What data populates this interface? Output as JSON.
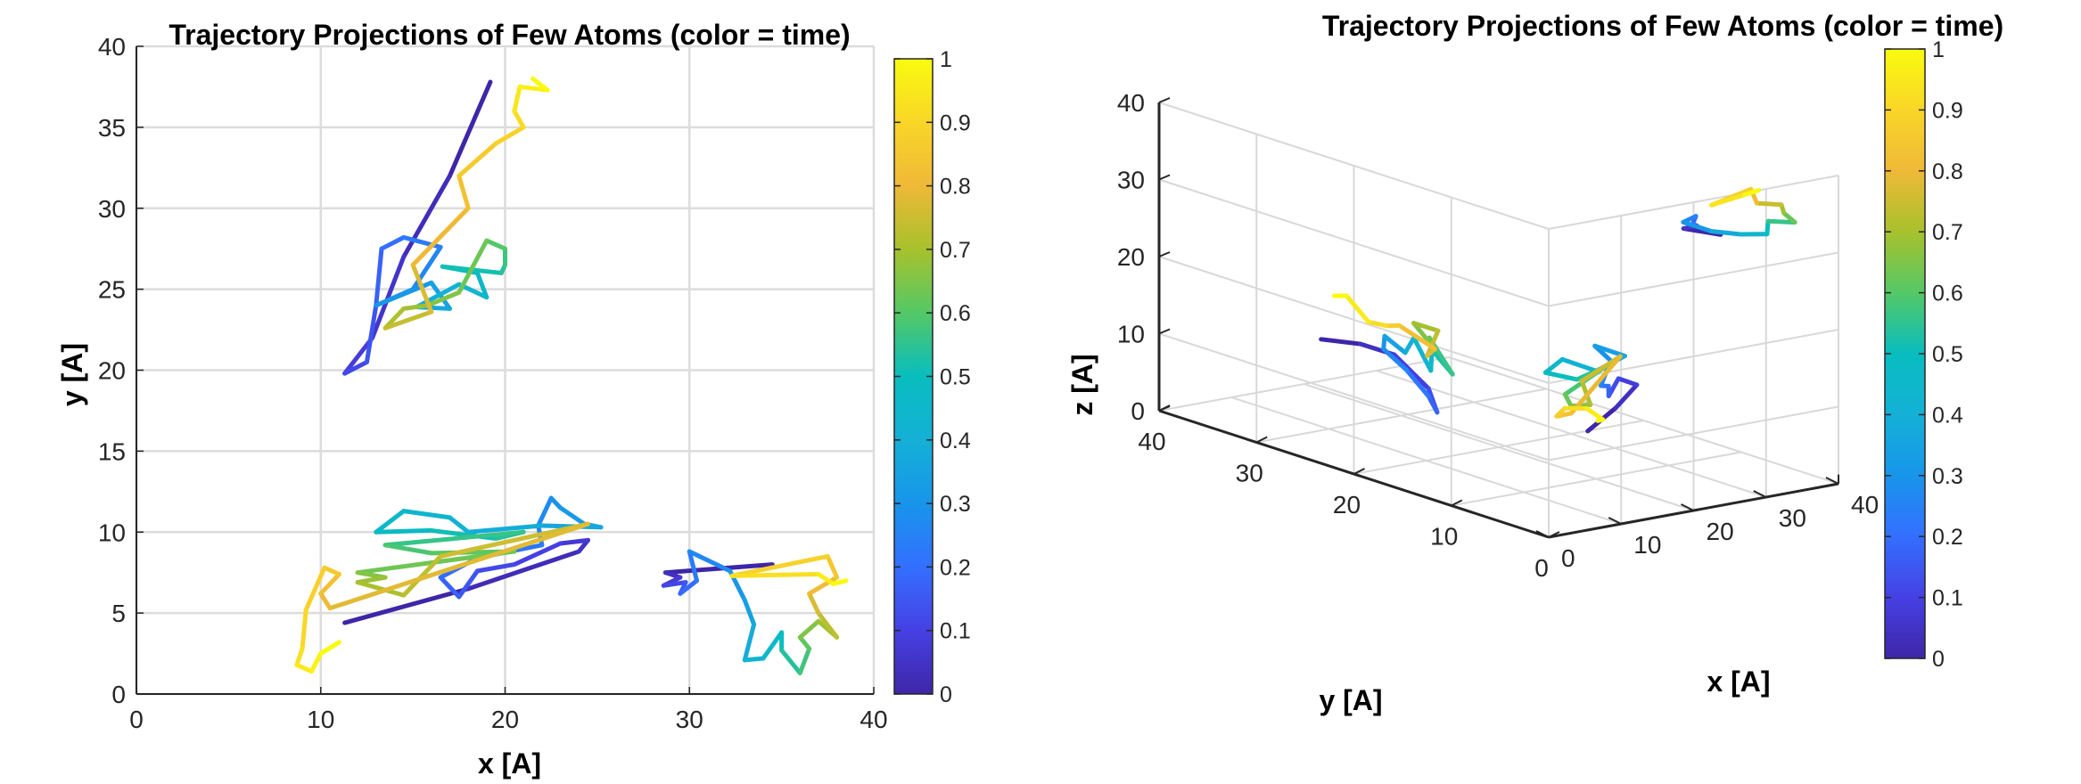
{
  "chart_data": [
    {
      "type": "line",
      "title": "Trajectory Projections of Few Atoms (color = time)",
      "xlabel": "x [A]",
      "ylabel": "y [A]",
      "xlim": [
        0,
        40
      ],
      "ylim": [
        0,
        40
      ],
      "xticks": [
        0,
        10,
        20,
        30,
        40
      ],
      "yticks": [
        0,
        5,
        10,
        15,
        20,
        25,
        30,
        35,
        40
      ],
      "grid": true,
      "colormap": "parula",
      "colorbar": {
        "ticks": [
          0,
          0.1,
          0.2,
          0.3,
          0.4,
          0.5,
          0.6,
          0.7,
          0.8,
          0.9,
          1
        ],
        "limits": [
          0,
          1
        ]
      },
      "series": [
        {
          "points": [
            [
              19.2,
              37.8
            ],
            [
              17,
              32
            ],
            [
              14.5,
              27
            ],
            [
              12.8,
              22
            ],
            [
              11.3,
              19.8
            ],
            [
              12.5,
              20.5
            ],
            [
              13,
              24
            ],
            [
              13.3,
              27.5
            ],
            [
              14.5,
              28.2
            ],
            [
              16.5,
              27.6
            ],
            [
              15,
              25
            ],
            [
              13,
              24
            ],
            [
              16,
              25.4
            ],
            [
              17,
              23.8
            ],
            [
              15.2,
              23.9
            ],
            [
              17.5,
              25.3
            ],
            [
              19,
              24.5
            ],
            [
              18.5,
              26
            ],
            [
              16.6,
              26.4
            ],
            [
              19.8,
              26
            ],
            [
              20,
              26.5
            ],
            [
              20,
              27.5
            ],
            [
              19,
              28
            ],
            [
              17.5,
              24.8
            ],
            [
              15.8,
              24
            ],
            [
              14.5,
              23.8
            ],
            [
              13.5,
              22.6
            ],
            [
              16,
              23.6
            ],
            [
              15,
              26.5
            ],
            [
              18,
              30
            ],
            [
              17.5,
              32
            ],
            [
              19.5,
              34
            ],
            [
              21,
              35
            ],
            [
              20.5,
              36
            ],
            [
              20.8,
              37.5
            ],
            [
              22.3,
              37.3
            ],
            [
              21.5,
              38.0
            ]
          ]
        },
        {
          "points": [
            [
              11.3,
              4.4
            ],
            [
              18,
              6.5
            ],
            [
              24,
              8.8
            ],
            [
              24.5,
              9.5
            ],
            [
              23,
              9.3
            ],
            [
              20.5,
              8
            ],
            [
              18.5,
              7.6
            ],
            [
              17.5,
              6
            ],
            [
              16.5,
              7.2
            ],
            [
              18.5,
              8.4
            ],
            [
              22,
              9.2
            ],
            [
              21.8,
              10.4
            ],
            [
              22.5,
              12.1
            ],
            [
              23,
              11.5
            ],
            [
              24.3,
              10.5
            ],
            [
              25.2,
              10.3
            ],
            [
              22,
              10.4
            ],
            [
              18,
              10
            ],
            [
              17,
              10.9
            ],
            [
              14.5,
              11.3
            ],
            [
              13,
              10
            ],
            [
              16,
              10.1
            ],
            [
              19.5,
              9.6
            ],
            [
              21,
              10
            ],
            [
              13.5,
              9.2
            ],
            [
              16,
              8.7
            ],
            [
              20.5,
              8.8
            ],
            [
              12,
              7.5
            ],
            [
              13.5,
              7.2
            ],
            [
              12,
              6.9
            ],
            [
              14.5,
              6.1
            ],
            [
              16.5,
              8.5
            ],
            [
              24.5,
              10.5
            ],
            [
              10.5,
              5.3
            ],
            [
              10,
              6.2
            ],
            [
              11,
              7.4
            ],
            [
              10.2,
              7.8
            ],
            [
              9.2,
              5.2
            ],
            [
              9,
              2.8
            ],
            [
              8.7,
              1.8
            ],
            [
              9.5,
              1.4
            ],
            [
              10,
              2.5
            ],
            [
              11,
              3.2
            ]
          ]
        },
        {
          "points": [
            [
              34.5,
              8
            ],
            [
              28.7,
              7.5
            ],
            [
              29.5,
              7.2
            ],
            [
              28.6,
              6.7
            ],
            [
              29.8,
              6.9
            ],
            [
              29.5,
              6.2
            ],
            [
              30.4,
              7
            ],
            [
              30,
              8.8
            ],
            [
              32.2,
              7.6
            ],
            [
              33,
              5.8
            ],
            [
              33.5,
              4.3
            ],
            [
              33,
              2.1
            ],
            [
              34,
              2.2
            ],
            [
              35,
              3.8
            ],
            [
              35,
              2.7
            ],
            [
              36,
              1.3
            ],
            [
              36.5,
              2.8
            ],
            [
              36,
              3.5
            ],
            [
              37,
              4.5
            ],
            [
              38,
              3.5
            ],
            [
              37,
              5
            ],
            [
              36.5,
              6.2
            ],
            [
              38,
              7.2
            ],
            [
              37.5,
              8.5
            ],
            [
              32.3,
              7.3
            ],
            [
              37,
              7.4
            ],
            [
              37.8,
              6.8
            ],
            [
              38.5,
              7
            ]
          ]
        }
      ]
    },
    {
      "type": "line",
      "title": "Trajectory Projections of Few Atoms (color = time)",
      "xlabel": "x [A]",
      "ylabel": "y [A]",
      "zlabel": "z [A]",
      "xlim": [
        0,
        40
      ],
      "ylim": [
        0,
        40
      ],
      "zlim": [
        0,
        40
      ],
      "xticks": [
        0,
        10,
        20,
        30,
        40
      ],
      "yticks": [
        0,
        10,
        20,
        30,
        40
      ],
      "zticks": [
        0,
        10,
        20,
        30,
        40
      ],
      "grid": true,
      "colormap": "parula",
      "colorbar": {
        "ticks": [
          0,
          0.1,
          0.2,
          0.3,
          0.4,
          0.5,
          0.6,
          0.7,
          0.8,
          0.9,
          1
        ],
        "limits": [
          0,
          1
        ]
      },
      "series": [
        {
          "points": [
            [
              19,
              37.5,
              7
            ],
            [
              17,
              32,
              9
            ],
            [
              15,
              27,
              10
            ],
            [
              13,
              22,
              8
            ],
            [
              11.5,
              20,
              6
            ],
            [
              13,
              22,
              7
            ],
            [
              14,
              25,
              9
            ],
            [
              13.5,
              27,
              11
            ],
            [
              15,
              28,
              12
            ],
            [
              16.5,
              27,
              10
            ],
            [
              15,
              25,
              13
            ],
            [
              16,
              24,
              9
            ],
            [
              17.5,
              25,
              11
            ],
            [
              19,
              24,
              8
            ],
            [
              18.5,
              26,
              12
            ],
            [
              20,
              26.5,
              10
            ],
            [
              19,
              28,
              13
            ],
            [
              17,
              24,
              14
            ],
            [
              15.5,
              24,
              11
            ],
            [
              16,
              23.6,
              12
            ],
            [
              15,
              26.5,
              14
            ],
            [
              18,
              30,
              12
            ],
            [
              19.5,
              33,
              11
            ],
            [
              20.5,
              36,
              13
            ],
            [
              21.5,
              38,
              12
            ]
          ]
        },
        {
          "points": [
            [
              11.3,
              4.4,
              10
            ],
            [
              18,
              6.5,
              11
            ],
            [
              24,
              8.8,
              12
            ],
            [
              22,
              9.2,
              13
            ],
            [
              18.5,
              7.6,
              12
            ],
            [
              17,
              6.5,
              14
            ],
            [
              18.5,
              8.4,
              13
            ],
            [
              22,
              10,
              15
            ],
            [
              22.5,
              12,
              16
            ],
            [
              24.5,
              10.4,
              15
            ],
            [
              20,
              10,
              14
            ],
            [
              16,
              10.5,
              16
            ],
            [
              13,
              10,
              15
            ],
            [
              16,
              9,
              14
            ],
            [
              20,
              9,
              15
            ],
            [
              13,
              8,
              13
            ],
            [
              12.5,
              7,
              12
            ],
            [
              14.5,
              6.5,
              12
            ],
            [
              16,
              8.5,
              14
            ],
            [
              24,
              10.5,
              15
            ],
            [
              10.5,
              5.5,
              12
            ],
            [
              10.5,
              7,
              11
            ],
            [
              9.2,
              5.2,
              13
            ],
            [
              9,
              2.8,
              14
            ],
            [
              9.5,
              1.5,
              13
            ],
            [
              10.8,
              3,
              12
            ]
          ]
        },
        {
          "points": [
            [
              34.5,
              8,
              30
            ],
            [
              28.7,
              7.5,
              32
            ],
            [
              29.6,
              6.8,
              32.5
            ],
            [
              28.6,
              6.5,
              33
            ],
            [
              30,
              7.2,
              33.5
            ],
            [
              30.4,
              8.8,
              32
            ],
            [
              32.5,
              7.5,
              31
            ],
            [
              33.2,
              5,
              31.5
            ],
            [
              33.5,
              2.5,
              32.5
            ],
            [
              35,
              3.5,
              33.5
            ],
            [
              36,
              1.5,
              34
            ],
            [
              36.5,
              3,
              34.5
            ],
            [
              37.5,
              4,
              35
            ],
            [
              36.8,
              6,
              34.5
            ],
            [
              38,
              7.5,
              35.5
            ],
            [
              32.3,
              7.3,
              34.5
            ],
            [
              37,
              7.4,
              35
            ],
            [
              38.4,
              7,
              35.5
            ]
          ]
        }
      ]
    }
  ]
}
